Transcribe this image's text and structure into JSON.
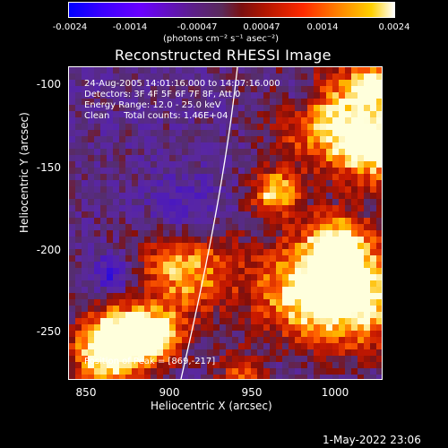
{
  "colorbar": {
    "ticks": [
      "-0.0024",
      "-0.0014",
      "-0.00047",
      "0.00047",
      "0.0014",
      "0.0024"
    ],
    "units": "(photons cm⁻² s⁻¹ asec⁻²)"
  },
  "title": "Reconstructed RHESSI Image",
  "annotations": {
    "time": "24-Aug-2005 14:01:16.000 to 14:07:16.000",
    "detectors": "Detectors: 3F 4F 5F 6F 7F 8F, Att 0",
    "energy": "Energy Range: 12.0 - 25.0 keV",
    "clean": "Clean     Total counts: 1.46E+04",
    "peak": "Position of Peak = [869,-217]"
  },
  "axes": {
    "x_label": "Heliocentric X (arcsec)",
    "y_label": "Heliocentric Y (arcsec)",
    "x_ticks": [
      "850",
      "900",
      "950",
      "1000"
    ],
    "y_ticks": [
      "-100",
      "-150",
      "-200",
      "-250"
    ]
  },
  "timestamp": "1-May-2022 23:06"
}
